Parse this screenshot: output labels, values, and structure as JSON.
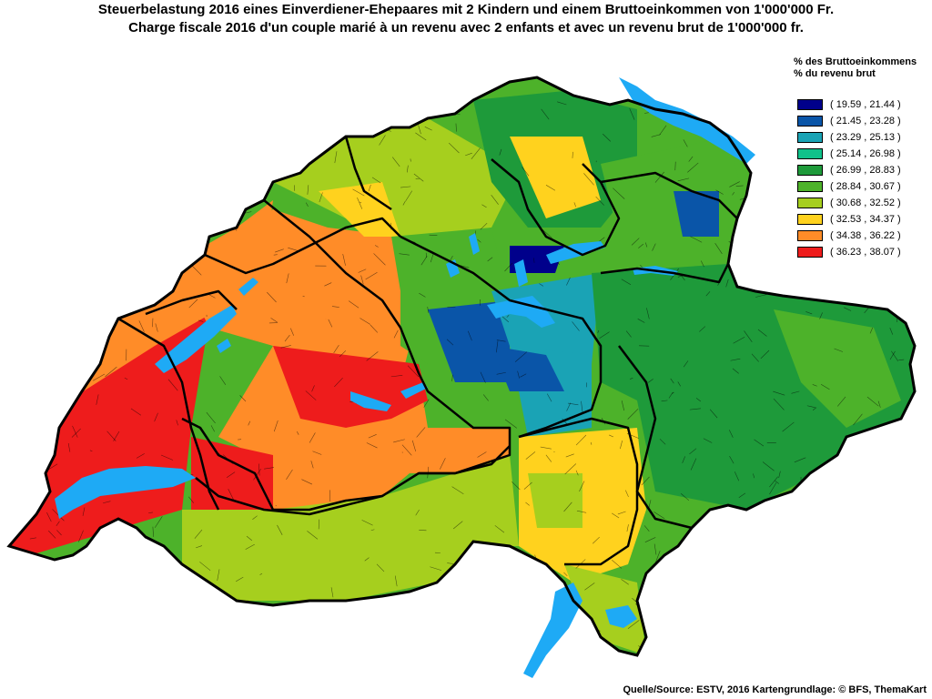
{
  "title": {
    "line1": "Steuerbelastung 2016 eines Einverdiener-Ehepaares mit 2 Kindern und einem Bruttoeinkommen von 1'000'000 Fr.",
    "line2": "Charge fiscale 2016 d'un couple marié à un revenu avec 2 enfants et avec un revenu brut de 1'000'000 fr."
  },
  "legend": {
    "heading_de": "% des Bruttoeinkommens",
    "heading_fr": "% du revenu brut",
    "classes": [
      {
        "label": "( 19.59 , 21.44 )",
        "color": "#00008b"
      },
      {
        "label": "( 21.45 , 23.28 )",
        "color": "#0a55a8"
      },
      {
        "label": "( 23.29 , 25.13 )",
        "color": "#1aa3b5"
      },
      {
        "label": "( 25.14 , 26.98 )",
        "color": "#10c28a"
      },
      {
        "label": "( 26.99 , 28.83 )",
        "color": "#1e9a3a"
      },
      {
        "label": "( 28.84 , 30.67 )",
        "color": "#4db22a"
      },
      {
        "label": "( 30.68 , 32.52 )",
        "color": "#a6cf1e"
      },
      {
        "label": "( 32.53 , 34.37 )",
        "color": "#ffd21e"
      },
      {
        "label": "( 34.38 , 36.22 )",
        "color": "#ff8c28"
      },
      {
        "label": "( 36.23 , 38.07 )",
        "color": "#ee1c1c"
      }
    ]
  },
  "source": "Quelle/Source: ESTV, 2016 Kartengrundlage: © BFS, ThemaKart",
  "colors": {
    "lake": "#1eaaf5",
    "border": "#000000"
  }
}
